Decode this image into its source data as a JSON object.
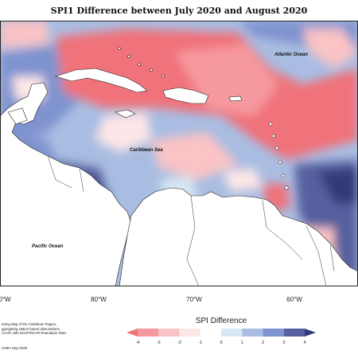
{
  "title": "SPI1 Difference between July 2020 and August 2020",
  "labels": {
    "atlantic": "Atlantic Ocean",
    "caribbean": "Caribbean Sea",
    "pacific": "Pacific Ocean"
  },
  "axis_ticks": [
    "80°W",
    "70°W",
    "60°W"
  ],
  "axis_edge_fragments": {
    "left": "0°W",
    "right": ""
  },
  "credits_lines": [
    "toring Map of the Caribbean Region,",
    "ggregating station based observations,",
    "CCOF, with NCEP/NCAR Reanalysis Data"
  ],
  "copyright": "CIMH Sep-2020",
  "legend": {
    "title": "SPI Difference",
    "ticks": [
      "-4",
      "-3",
      "-2",
      "-1",
      "0",
      "1",
      "2",
      "3",
      "4"
    ],
    "colors": {
      "neg4": "#f0727a",
      "neg3": "#f6999e",
      "neg2": "#fac3c5",
      "neg1": "#fde6e7",
      "pos0": "#d7e7f3",
      "pos1": "#a9bde2",
      "pos2": "#7f93cf",
      "pos3": "#57609f",
      "pos4": "#333a78"
    }
  }
}
